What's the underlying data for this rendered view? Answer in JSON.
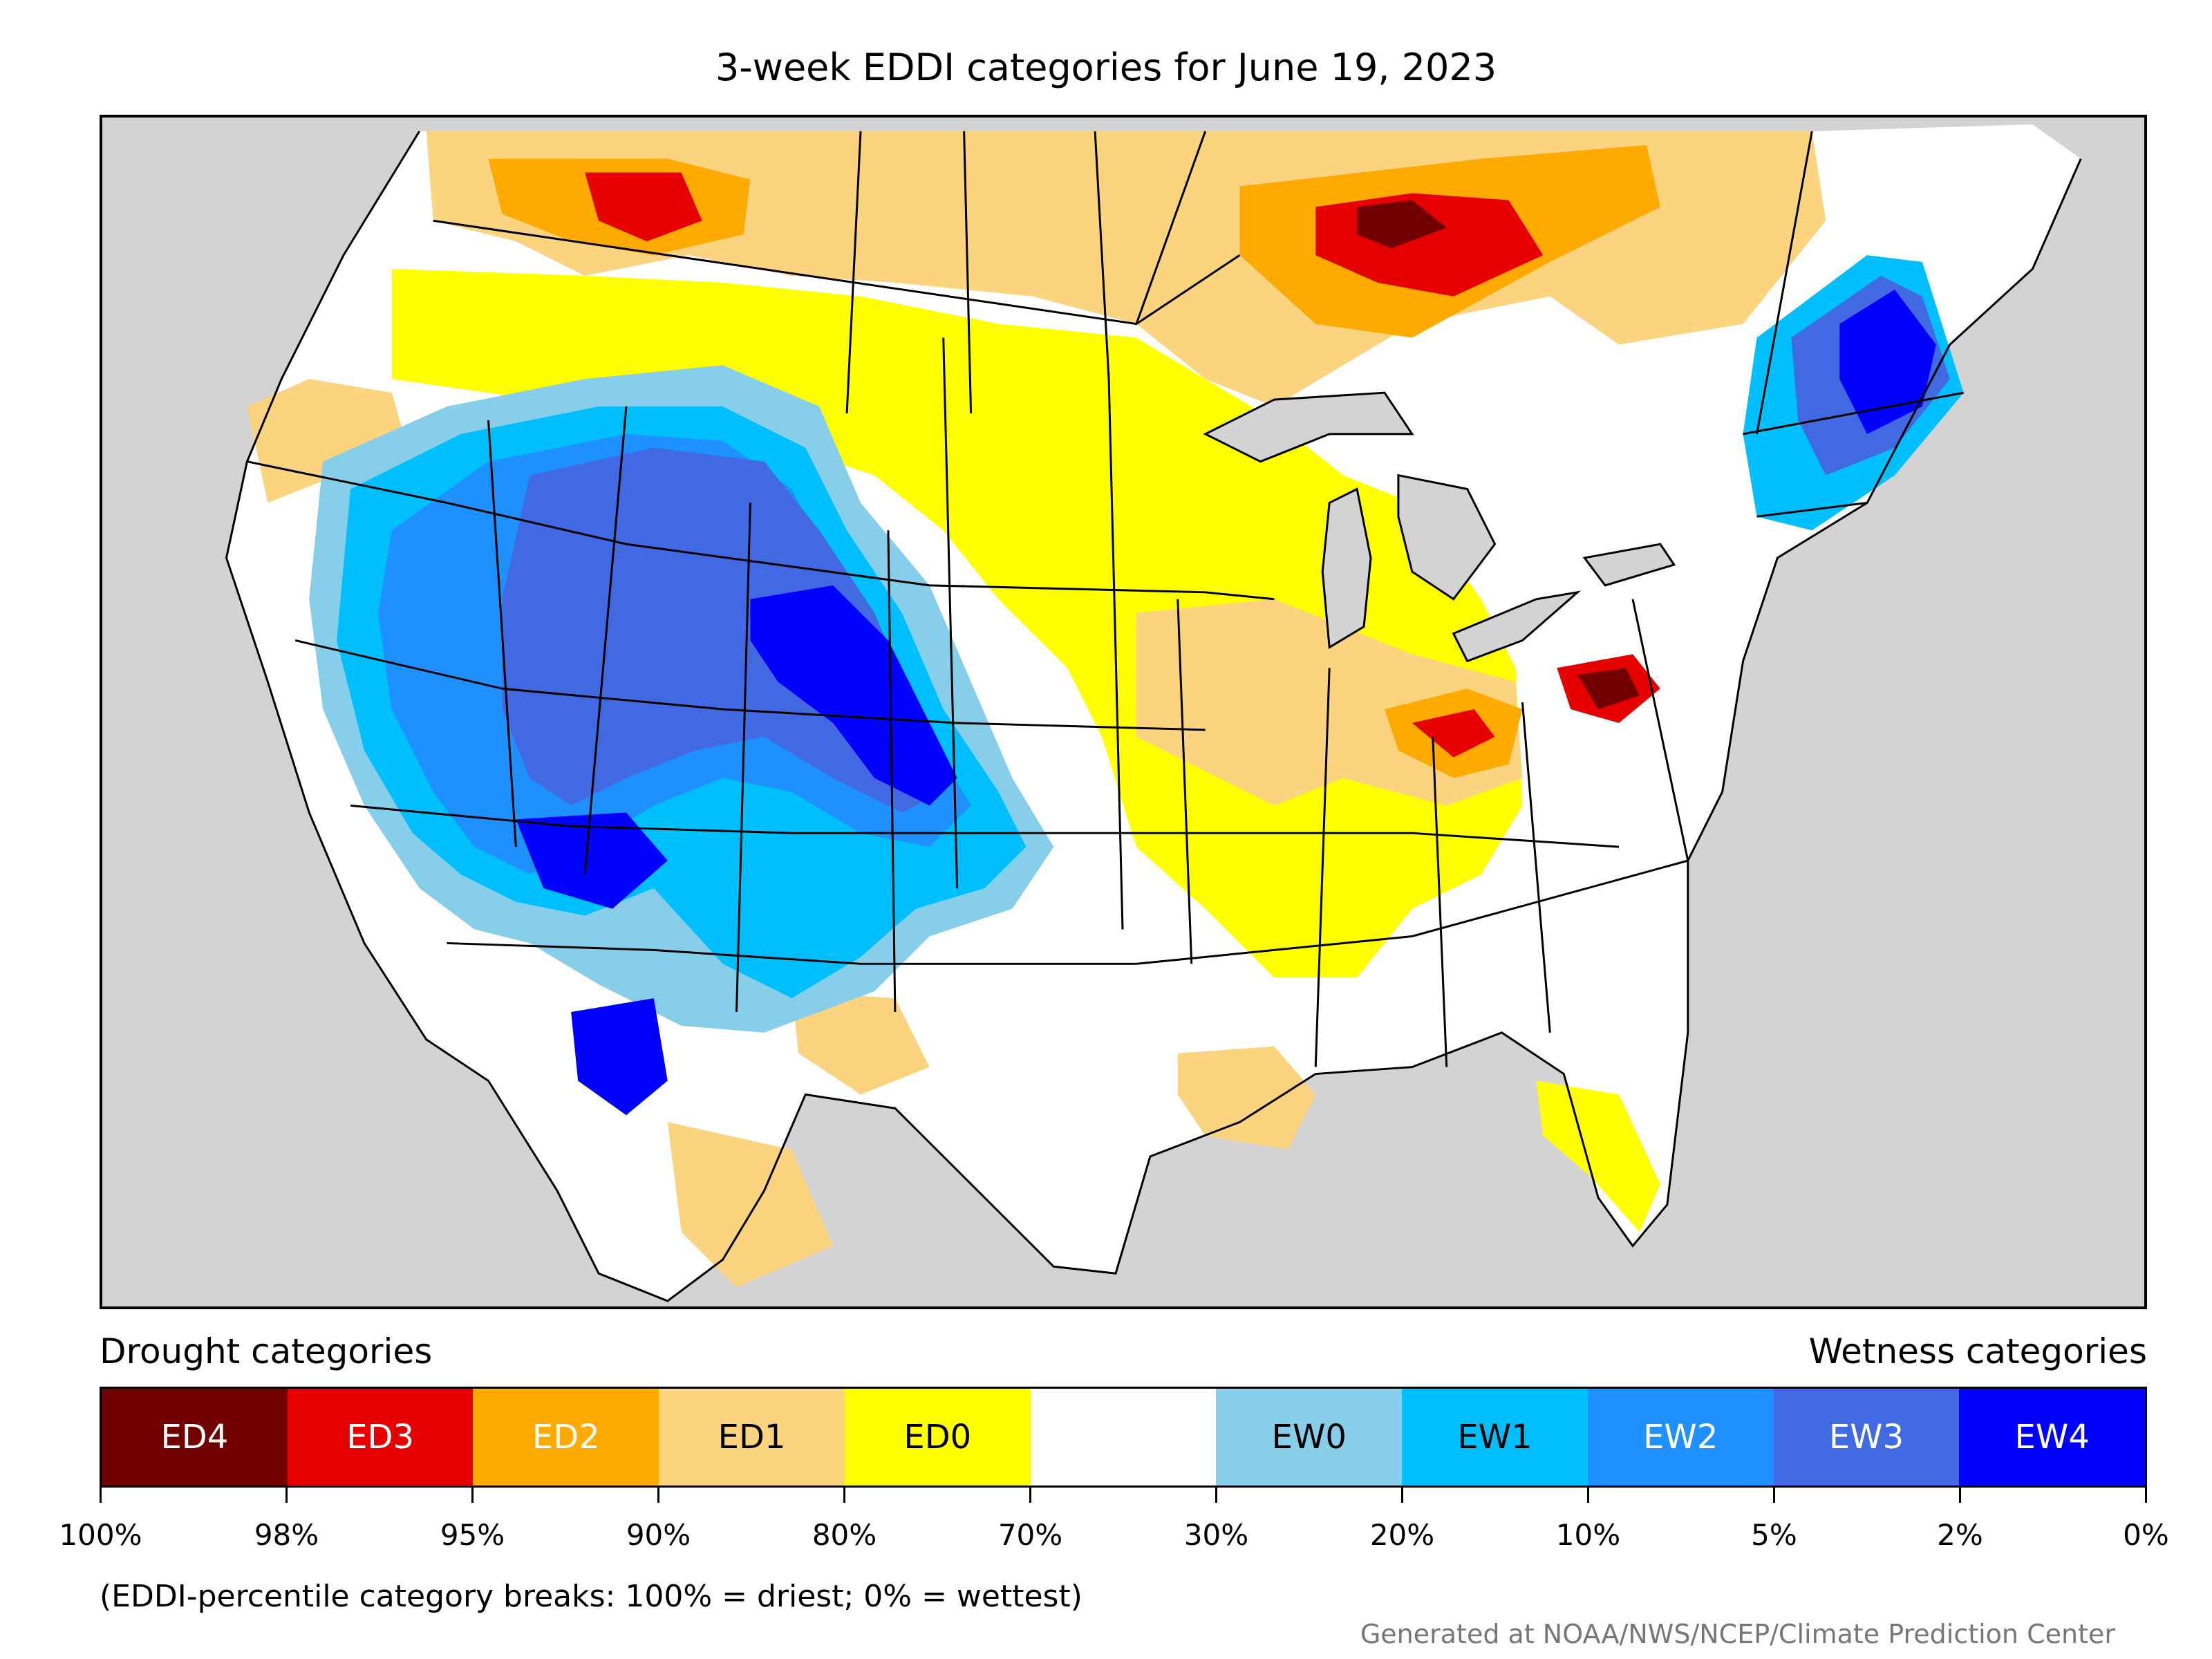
{
  "title": "3-week EDDI categories for June 19, 2023",
  "legend": {
    "drought_heading": "Drought categories",
    "wetness_heading": "Wetness categories",
    "categories": [
      {
        "label": "ED4",
        "color": "#730000",
        "text_color": "#ffffff"
      },
      {
        "label": "ED3",
        "color": "#e60000",
        "text_color": "#ffffff"
      },
      {
        "label": "ED2",
        "color": "#ffaa00",
        "text_color": "#ffffff"
      },
      {
        "label": "ED1",
        "color": "#fcd37f",
        "text_color": "#000000"
      },
      {
        "label": "ED0",
        "color": "#ffff00",
        "text_color": "#000000"
      },
      {
        "label": "",
        "color": "#ffffff",
        "text_color": "#000000"
      },
      {
        "label": "EW0",
        "color": "#87ceeb",
        "text_color": "#000000"
      },
      {
        "label": "EW1",
        "color": "#00bfff",
        "text_color": "#000000"
      },
      {
        "label": "EW2",
        "color": "#1e90ff",
        "text_color": "#ffffff"
      },
      {
        "label": "EW3",
        "color": "#4169e1",
        "text_color": "#ffffff"
      },
      {
        "label": "EW4",
        "color": "#0000ff",
        "text_color": "#ffffff"
      }
    ],
    "breaks": [
      "100%",
      "98%",
      "95%",
      "90%",
      "80%",
      "70%",
      "30%",
      "20%",
      "10%",
      "5%",
      "2%",
      "0%"
    ]
  },
  "note": "(EDDI-percentile category breaks: 100% = driest; 0% = wettest)",
  "credit": "Generated at NOAA/NWS/NCEP/Climate Prediction Center",
  "map": {
    "background_color": "#d3d3d3",
    "lake_color": "#d3d3d3",
    "boundary_color": "#000000"
  }
}
